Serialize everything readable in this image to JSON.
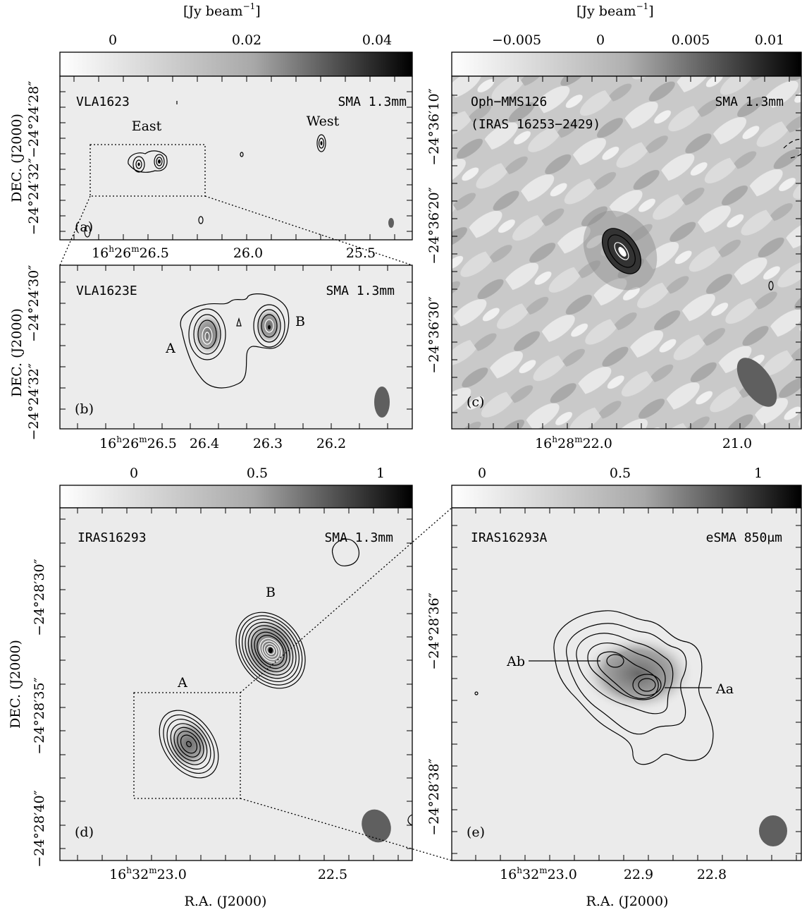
{
  "figure": {
    "colorbar_unit_label": "[Jy beam",
    "colorbar_unit_exp": "−1",
    "ra_axis_label": "R.A. (J2000)",
    "dec_axis_label": "DEC. (J2000)",
    "colors": {
      "background": "#ffffff",
      "beam": "#5f5f5f",
      "map_gray": "#ececec"
    }
  },
  "panels": {
    "a": {
      "name": "VLA1623",
      "instrument": "SMA 1.3mm",
      "letter": "(a)",
      "colorbar_ticks": [
        "0",
        "0.02",
        "0.04"
      ],
      "dec_ticks": [
        "−24°24′28″",
        "−24°24′32″"
      ],
      "ra_ticks": {
        "t1_h": "16",
        "t1_m": "26",
        "t1_s": "26.5",
        "t2": "26.0",
        "t3": "25.5"
      },
      "labels": {
        "east": "East",
        "west": "West"
      }
    },
    "b": {
      "name": "VLA1623E",
      "instrument": "SMA 1.3mm",
      "letter": "(b)",
      "dec_ticks": [
        "−24°24′30″",
        "−24°24′32″"
      ],
      "ra_ticks": {
        "t1_h": "16",
        "t1_m": "26",
        "t1_s": "26.5",
        "t2": "26.4",
        "t3": "26.3",
        "t4": "26.2"
      },
      "labels": {
        "a": "A",
        "b": "B"
      }
    },
    "c": {
      "name": "Oph−MMS126",
      "name2": "(IRAS 16253−2429)",
      "instrument": "SMA 1.3mm",
      "letter": "(c)",
      "colorbar_ticks": [
        "−0.005",
        "0",
        "0.005",
        "0.01"
      ],
      "dec_ticks": [
        "−24°36′10″",
        "−24°36′20″",
        "−24°36′30″"
      ],
      "ra_ticks": {
        "t1_h": "16",
        "t1_m": "28",
        "t1_s": "22.0",
        "t2": "21.0"
      }
    },
    "d": {
      "name": "IRAS16293",
      "instrument": "SMA 1.3mm",
      "letter": "(d)",
      "colorbar_ticks": [
        "0",
        "0.5",
        "1"
      ],
      "dec_ticks": [
        "−24°28′30″",
        "−24°28′35″",
        "−24°28′40″"
      ],
      "ra_ticks": {
        "t1_h": "16",
        "t1_m": "32",
        "t1_s": "23.0",
        "t2": "22.5"
      },
      "labels": {
        "a": "A",
        "b": "B"
      }
    },
    "e": {
      "name": "IRAS16293A",
      "instrument": "eSMA 850μm",
      "letter": "(e)",
      "colorbar_ticks": [
        "0",
        "0.5",
        "1"
      ],
      "dec_ticks": [
        "−24°28′36″",
        "−24°28′38″"
      ],
      "ra_ticks": {
        "t1_h": "16",
        "t1_m": "32",
        "t1_s": "23.0",
        "t2": "22.9",
        "t3": "22.8"
      },
      "labels": {
        "ab": "Ab",
        "aa": "Aa"
      }
    }
  }
}
